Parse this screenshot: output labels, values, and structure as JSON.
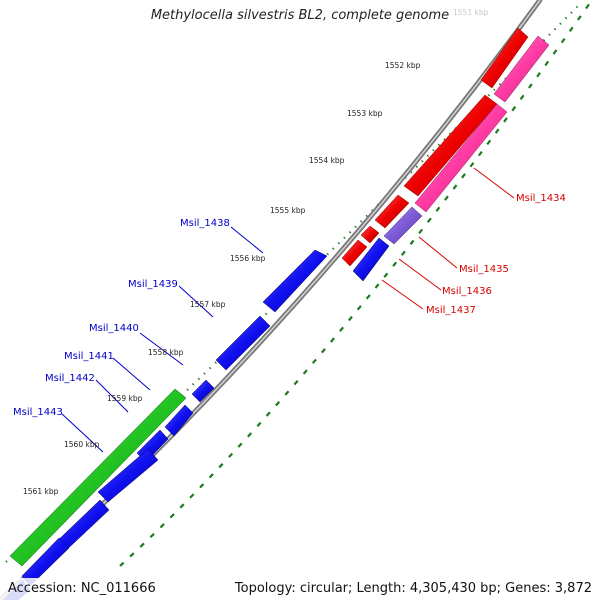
{
  "title": "Methylocella silvestris BL2, complete genome",
  "faded_tick": "1551 kbp",
  "footer": {
    "accession": "Accession: NC_011666",
    "summary": "Topology: circular; Length: 4,305,430 bp; Genes: 3,872"
  },
  "colors": {
    "plus_strand_gene": "#ff0000",
    "plus_strand_rna": "#ff3ba3",
    "plus_strand_misc": "#7e5ad6",
    "minus_strand_gene": "#1010f0",
    "minus_strand_rna": "#22c322",
    "backbone": "#8a8a8a",
    "tick": "#1c7a1c",
    "label_right": "#d80000",
    "label_left": "#0000c8"
  },
  "ticks": [
    "1552 kbp",
    "1553 kbp",
    "1554 kbp",
    "1555 kbp",
    "1556 kbp",
    "1557 kbp",
    "1558 kbp",
    "1559 kbp",
    "1560 kbp",
    "1561 kbp"
  ],
  "gene_labels": {
    "right": [
      "Msil_1434",
      "Msil_1435",
      "Msil_1436",
      "Msil_1437"
    ],
    "left": [
      "Msil_1438",
      "Msil_1439",
      "Msil_1440",
      "Msil_1441",
      "Msil_1442",
      "Msil_1443"
    ]
  }
}
